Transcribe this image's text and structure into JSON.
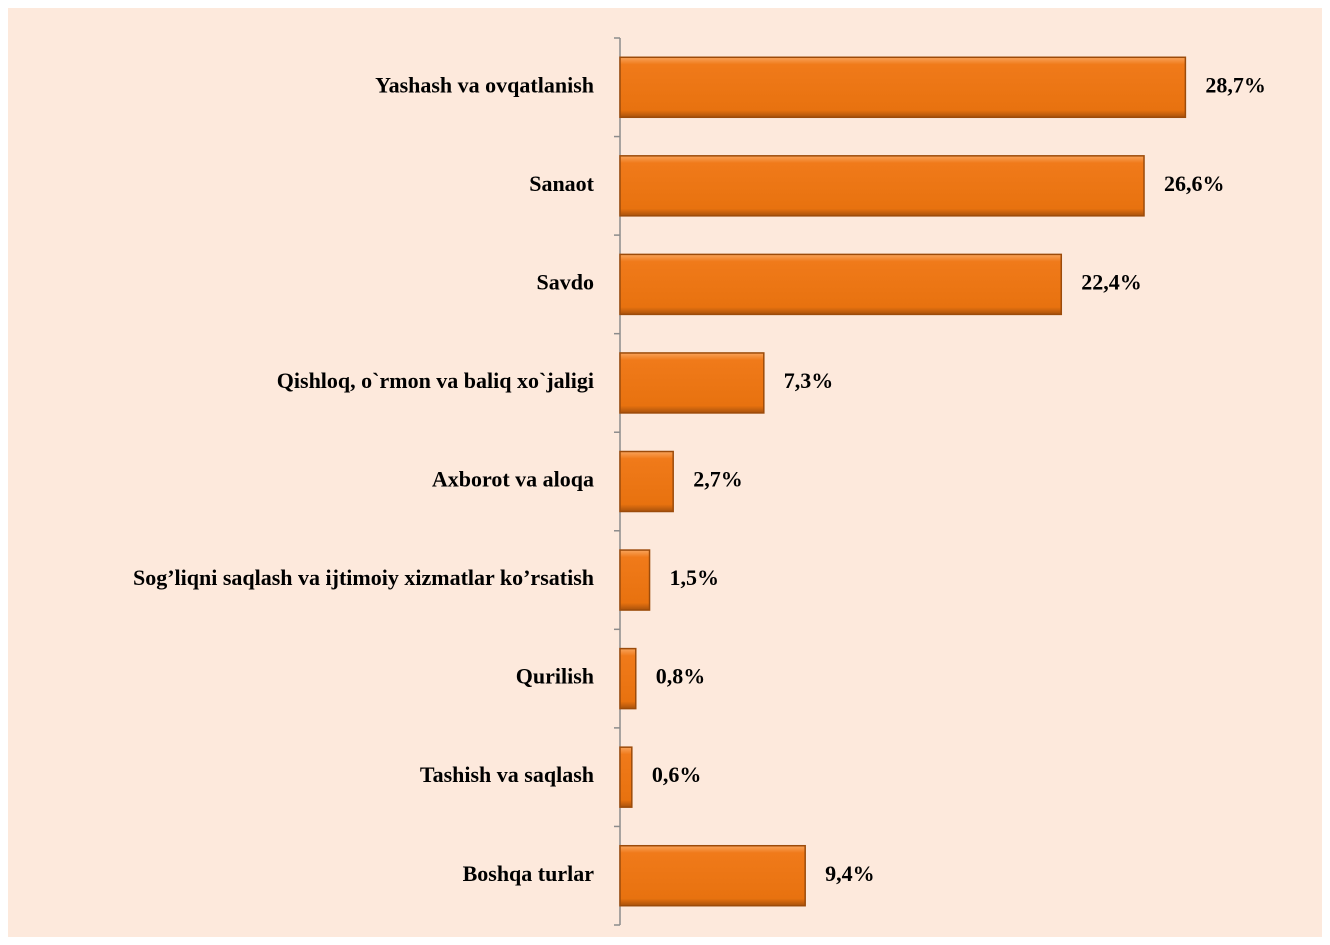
{
  "chart_data": {
    "type": "bar",
    "orientation": "horizontal",
    "categories": [
      "Yashash va ovqatlanish",
      "Sanaot",
      "Savdo",
      "Qishloq, o`rmon va baliq xo`jaligi",
      "Axborot va aloqa",
      "Sog’liqni saqlash va ijtimoiy xizmatlar ko’rsatish",
      "Qurilish",
      "Tashish va saqlash",
      "Boshqa turlar"
    ],
    "values": [
      28.7,
      26.6,
      22.4,
      7.3,
      2.7,
      1.5,
      0.8,
      0.6,
      9.4
    ],
    "value_labels": [
      "28,7%",
      "26,6%",
      "22,4%",
      "7,3%",
      "2,7%",
      "1,5%",
      "0,8%",
      "0,6%",
      "9,4%"
    ],
    "color": "#f07a1a"
  }
}
